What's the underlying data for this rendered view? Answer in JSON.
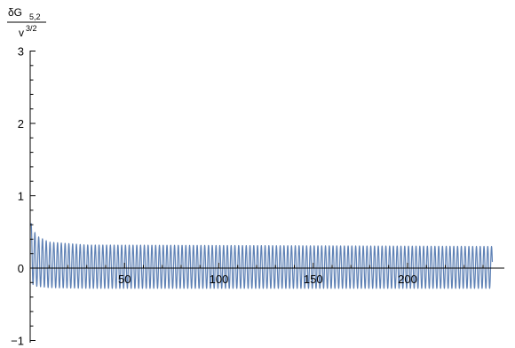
{
  "chart_data": {
    "type": "line",
    "title": "",
    "xlabel": "",
    "ylabel": {
      "numerator": "δG",
      "numerator_sub": "5,2",
      "denominator": "v",
      "denominator_sup": "3/2"
    },
    "xlim": [
      0,
      245
    ],
    "ylim": [
      -1,
      3
    ],
    "x_ticks": [
      50,
      100,
      150,
      200
    ],
    "y_ticks": [
      -1,
      0,
      1,
      2,
      3
    ],
    "series": [
      {
        "color": "#5E81B5",
        "description_values": {
          "x_range": [
            0.5,
            245
          ],
          "oscillation_period_x": 2.0,
          "envelope_upper": [
            [
              1,
              0.62
            ],
            [
              3,
              0.45
            ],
            [
              10,
              0.36
            ],
            [
              30,
              0.32
            ],
            [
              245,
              0.3
            ]
          ],
          "envelope_lower": [
            [
              1,
              -0.22
            ],
            [
              3,
              -0.25
            ],
            [
              10,
              -0.27
            ],
            [
              30,
              -0.28
            ],
            [
              245,
              -0.28
            ]
          ]
        }
      }
    ],
    "grid": false,
    "legend": "none"
  }
}
